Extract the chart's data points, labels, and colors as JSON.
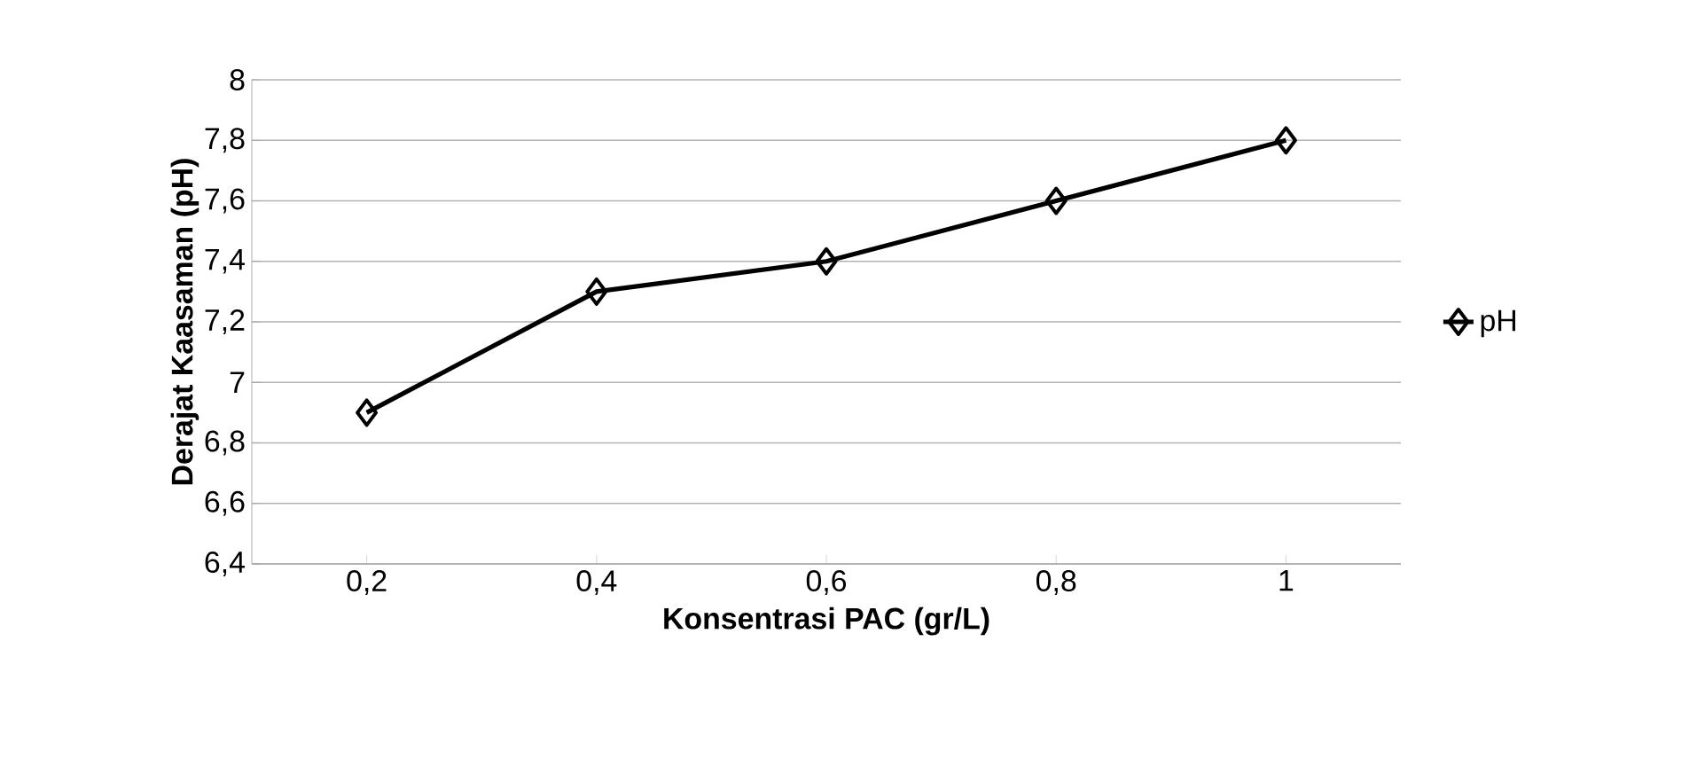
{
  "chart_data": {
    "type": "line",
    "xlabel": "Konsentrasi PAC (gr/L)",
    "ylabel": "Derajat Kaasaman (pH)",
    "categories": [
      "0,2",
      "0,4",
      "0,6",
      "0,8",
      "1"
    ],
    "series": [
      {
        "name": "pH",
        "color": "#000000",
        "values": [
          6.9,
          7.3,
          7.4,
          7.6,
          7.8
        ]
      }
    ],
    "ylim": [
      6.4,
      8
    ],
    "yticks": [
      {
        "value": 6.4,
        "label": "6,4"
      },
      {
        "value": 6.6,
        "label": "6,6"
      },
      {
        "value": 6.8,
        "label": "6,8"
      },
      7,
      {
        "value": 7.2,
        "label": "7,2"
      },
      {
        "value": 7.4,
        "label": "7,4"
      },
      {
        "value": 7.6,
        "label": "7,6"
      },
      {
        "value": 7.8,
        "label": "7,8"
      },
      8
    ],
    "grid": "y",
    "legend": "right",
    "marker": "diamond",
    "line_style": "solid"
  }
}
